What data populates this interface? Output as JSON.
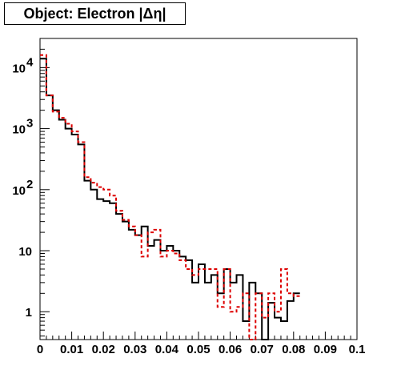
{
  "chart_data": {
    "type": "step-histogram",
    "title": "Object: Electron |Δη|",
    "xlim": [
      0,
      0.1
    ],
    "ylim": [
      0.35,
      30000
    ],
    "yscale": "log",
    "grid": false,
    "x_ticks": [
      {
        "v": 0,
        "label": "0"
      },
      {
        "v": 0.01,
        "label": "0.01"
      },
      {
        "v": 0.02,
        "label": "0.02"
      },
      {
        "v": 0.03,
        "label": "0.03"
      },
      {
        "v": 0.04,
        "label": "0.04"
      },
      {
        "v": 0.05,
        "label": "0.05"
      },
      {
        "v": 0.06,
        "label": "0.06"
      },
      {
        "v": 0.07,
        "label": "0.07"
      },
      {
        "v": 0.08,
        "label": "0.08"
      },
      {
        "v": 0.09,
        "label": "0.09"
      },
      {
        "v": 0.1,
        "label": "0.1"
      }
    ],
    "y_ticks": [
      {
        "v": 1,
        "base": "1",
        "exp": ""
      },
      {
        "v": 10,
        "base": "10",
        "exp": ""
      },
      {
        "v": 100,
        "base": "10",
        "exp": "2"
      },
      {
        "v": 1000,
        "base": "10",
        "exp": "3"
      },
      {
        "v": 10000,
        "base": "10",
        "exp": "4"
      }
    ],
    "bin_width": 0.002,
    "series": [
      {
        "color": "#000000",
        "style": "solid",
        "values": [
          14000,
          3500,
          2000,
          1400,
          1000,
          800,
          550,
          140,
          100,
          70,
          65,
          60,
          40,
          30,
          22,
          18,
          25,
          12,
          15,
          10,
          12,
          10,
          8,
          7,
          3,
          6,
          3,
          4,
          2,
          5,
          3,
          4,
          0.7,
          3,
          2,
          0.3,
          1.4,
          0.8,
          0.7,
          1.5,
          2
        ]
      },
      {
        "color": "#dd0000",
        "style": "dashed",
        "values": [
          16000,
          3500,
          1900,
          1500,
          1200,
          900,
          600,
          160,
          130,
          110,
          100,
          80,
          45,
          32,
          25,
          18,
          8,
          20,
          22,
          8,
          10,
          9,
          7,
          5,
          4,
          5,
          5,
          5,
          1.2,
          5,
          1,
          1.2,
          2,
          0.15,
          2,
          0.8,
          2,
          1,
          5,
          2,
          1.8
        ]
      }
    ]
  }
}
